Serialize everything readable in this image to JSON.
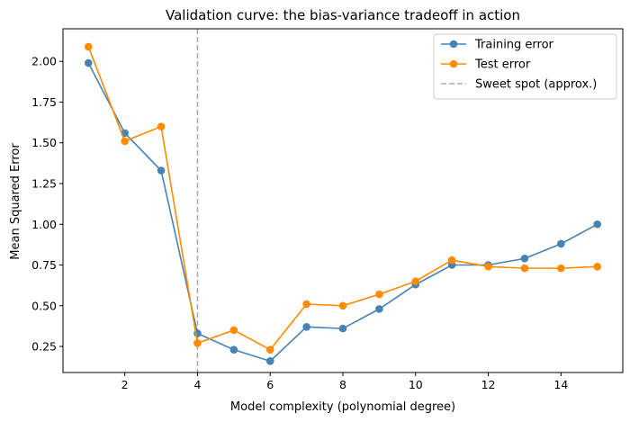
{
  "chart_data": {
    "type": "line",
    "title": "Validation curve: the bias-variance tradeoff in action",
    "xlabel": "Model complexity (polynomial degree)",
    "ylabel": "Mean Squared Error",
    "xlim": [
      0.3,
      15.7
    ],
    "ylim": [
      0.09,
      2.2
    ],
    "xticks": [
      2,
      4,
      6,
      8,
      10,
      12,
      14
    ],
    "yticks": [
      0.25,
      0.5,
      0.75,
      1.0,
      1.25,
      1.5,
      1.75,
      2.0
    ],
    "x": [
      1,
      2,
      3,
      4,
      5,
      6,
      7,
      8,
      9,
      10,
      11,
      12,
      13,
      14,
      15
    ],
    "series": [
      {
        "name": "Training error",
        "color": "#4682b4",
        "values": [
          1.99,
          1.56,
          1.33,
          0.33,
          0.23,
          0.16,
          0.37,
          0.36,
          0.48,
          0.63,
          0.75,
          0.75,
          0.79,
          0.88,
          1.0
        ]
      },
      {
        "name": "Test error",
        "color": "#ff8c00",
        "values": [
          2.09,
          1.51,
          1.6,
          0.27,
          0.35,
          0.23,
          0.51,
          0.5,
          0.57,
          0.65,
          0.78,
          0.74,
          0.73,
          0.73,
          0.74
        ]
      }
    ],
    "reference_line": {
      "name": "Sweet spot (approx.)",
      "x": 4,
      "color": "#aaaaaa",
      "style": "dashed"
    },
    "legend_position": "top-right",
    "grid": false
  }
}
